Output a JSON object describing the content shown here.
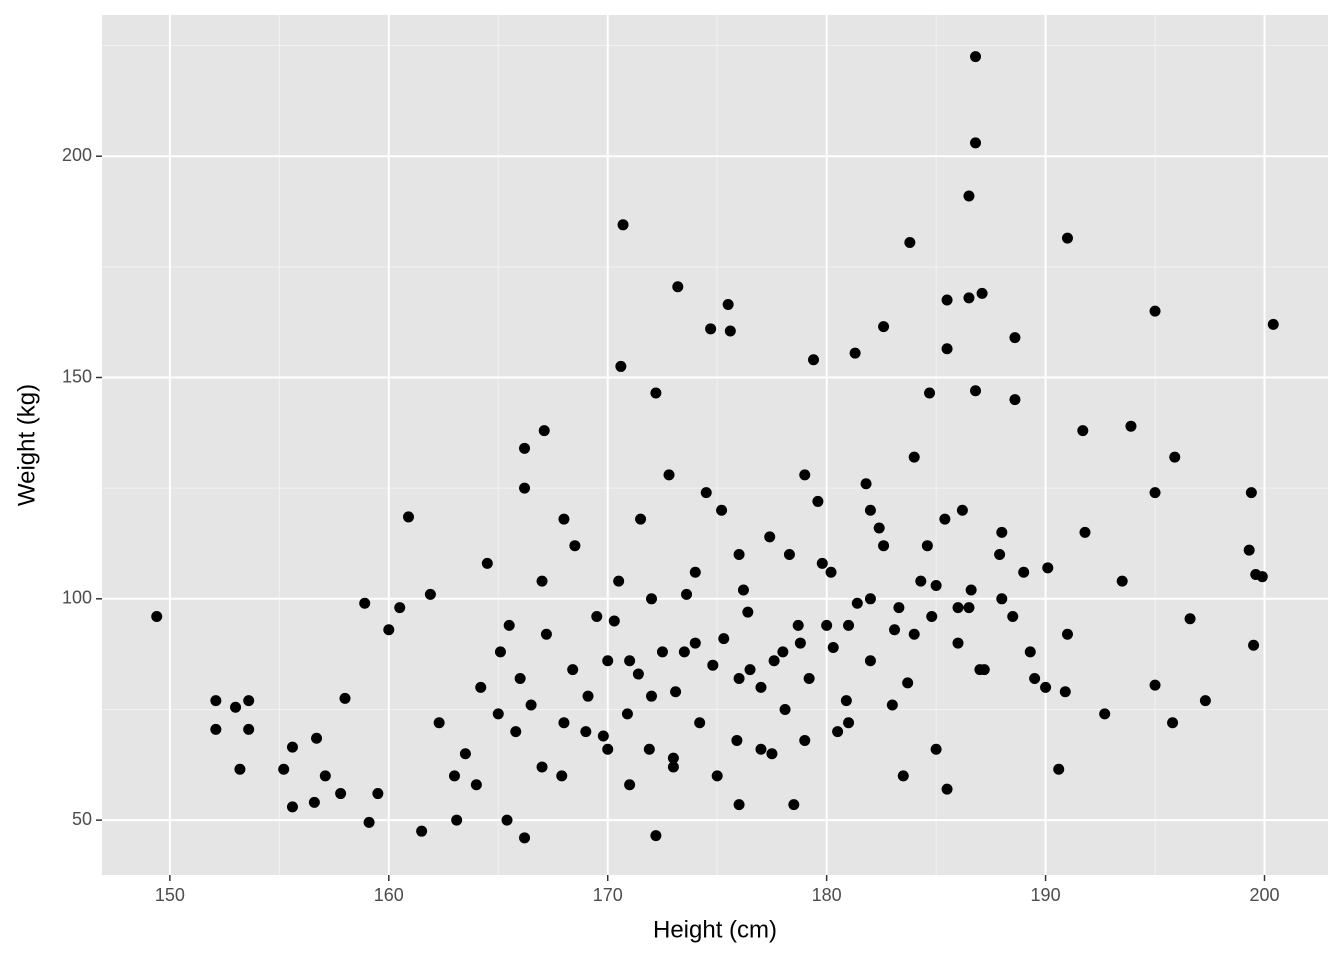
{
  "chart_data": {
    "type": "scatter",
    "xlabel": "Height (cm)",
    "ylabel": "Weight (kg)",
    "xlim": [
      146.9,
      202.9
    ],
    "ylim": [
      37.6,
      231.9
    ],
    "xticks": [
      150,
      160,
      170,
      180,
      190,
      200
    ],
    "yticks": [
      50,
      100,
      150,
      200
    ],
    "xminor": [
      155,
      165,
      175,
      185,
      195
    ],
    "yminor": [
      75,
      125,
      175,
      225
    ],
    "grid": true,
    "color": "#000000",
    "x": [
      149.4,
      152.1,
      152.1,
      153,
      153.6,
      153.6,
      153.2,
      155.2,
      155.6,
      155.6,
      156.6,
      156.7,
      157.1,
      157.8,
      158,
      158.9,
      159.1,
      159.5,
      160,
      160.5,
      160.9,
      161.5,
      161.9,
      163.1,
      164.5,
      165.4,
      166.2,
      166.2,
      166.2,
      167.1,
      170.7,
      170.6,
      172.2,
      172.2,
      173.2,
      174.7,
      175.5,
      175.6,
      179.4,
      181.3,
      182.6,
      183.8,
      184.7,
      185.5,
      185.5,
      185.5,
      186.5,
      186.5,
      186.8,
      186.8,
      187.1,
      186.8,
      188.6,
      191,
      191.7,
      193.9,
      195,
      195,
      195,
      195.8,
      195.9,
      196.6,
      197.3,
      199.3,
      199.4,
      199.5,
      199.6,
      199.9,
      200.4,
      190.6,
      188.6,
      178.5,
      176,
      162.3,
      163.5,
      164.2,
      165.1,
      165.8,
      166.5,
      167.2,
      167.9,
      168.4,
      169.1,
      169.8,
      170.3,
      170.9,
      171.4,
      171.9,
      172.5,
      173.1,
      173.6,
      174.2,
      174.8,
      175.3,
      175.9,
      176.4,
      177,
      177.6,
      178.1,
      178.7,
      179.2,
      179.8,
      180.3,
      180.9,
      181.4,
      182,
      182.6,
      183.1,
      183.7,
      184.3,
      184.8,
      185.4,
      186,
      186.6,
      187.2,
      187.9,
      188.5,
      189.3,
      190.1,
      190.9,
      191.8,
      192.7,
      193.5,
      164,
      165.5,
      167,
      168.5,
      170,
      171.5,
      173,
      174.5,
      176,
      177.5,
      179,
      180.5,
      182,
      183.5,
      185,
      186.5,
      188,
      189.5,
      191,
      166,
      168,
      170,
      172,
      174,
      176,
      178,
      180,
      182,
      184,
      186,
      188,
      190,
      163,
      165,
      167,
      169,
      171,
      173,
      175,
      177,
      179,
      181,
      183,
      185,
      187,
      189,
      168,
      170.5,
      172.8,
      175.2,
      177.4,
      179.6,
      181.8,
      184,
      186.2,
      171,
      173.5,
      176.5,
      178.8,
      181,
      183.3,
      169.5,
      172,
      174,
      176.2,
      178.3,
      180.2,
      182.4,
      184.6
    ],
    "y": [
      96,
      77,
      70.5,
      75.5,
      77,
      70.5,
      61.5,
      61.5,
      53,
      66.5,
      54,
      68.5,
      60,
      56,
      77.5,
      99,
      49.5,
      56,
      93,
      98,
      118.5,
      47.5,
      101,
      50,
      108,
      50,
      46,
      134,
      125,
      138,
      184.5,
      152.5,
      146.5,
      46.5,
      170.5,
      161,
      166.5,
      160.5,
      154,
      155.5,
      161.5,
      180.5,
      146.5,
      167.5,
      156.5,
      57,
      191,
      168,
      222.5,
      203,
      169,
      147,
      159,
      181.5,
      138,
      139,
      165,
      124,
      80.5,
      72,
      132,
      95.5,
      77,
      111,
      124,
      89.5,
      105.5,
      105,
      162,
      61.5,
      145,
      53.5,
      53.5,
      72,
      65,
      80,
      88,
      70,
      76,
      92,
      60,
      84,
      78,
      69,
      95,
      74,
      83,
      66,
      88,
      79,
      101,
      72,
      85,
      91,
      68,
      97,
      80,
      86,
      75,
      94,
      82,
      108,
      89,
      77,
      99,
      86,
      112,
      93,
      81,
      104,
      96,
      118,
      90,
      102,
      84,
      110,
      96,
      88,
      107,
      79,
      115,
      74,
      104,
      58,
      94,
      104,
      112,
      66,
      118,
      62,
      124,
      110,
      65,
      128,
      70,
      120,
      60,
      103,
      98,
      115,
      82,
      92,
      82,
      72,
      86,
      78,
      90,
      82,
      88,
      94,
      100,
      92,
      98,
      100,
      80,
      60,
      74,
      62,
      70,
      58,
      64,
      60,
      66,
      68,
      72,
      76,
      66,
      84,
      106,
      118,
      104,
      128,
      120,
      114,
      122,
      126,
      132,
      120,
      86,
      88,
      84,
      90,
      94,
      98,
      96,
      100,
      106,
      102,
      110,
      106,
      116,
      112
    ]
  }
}
